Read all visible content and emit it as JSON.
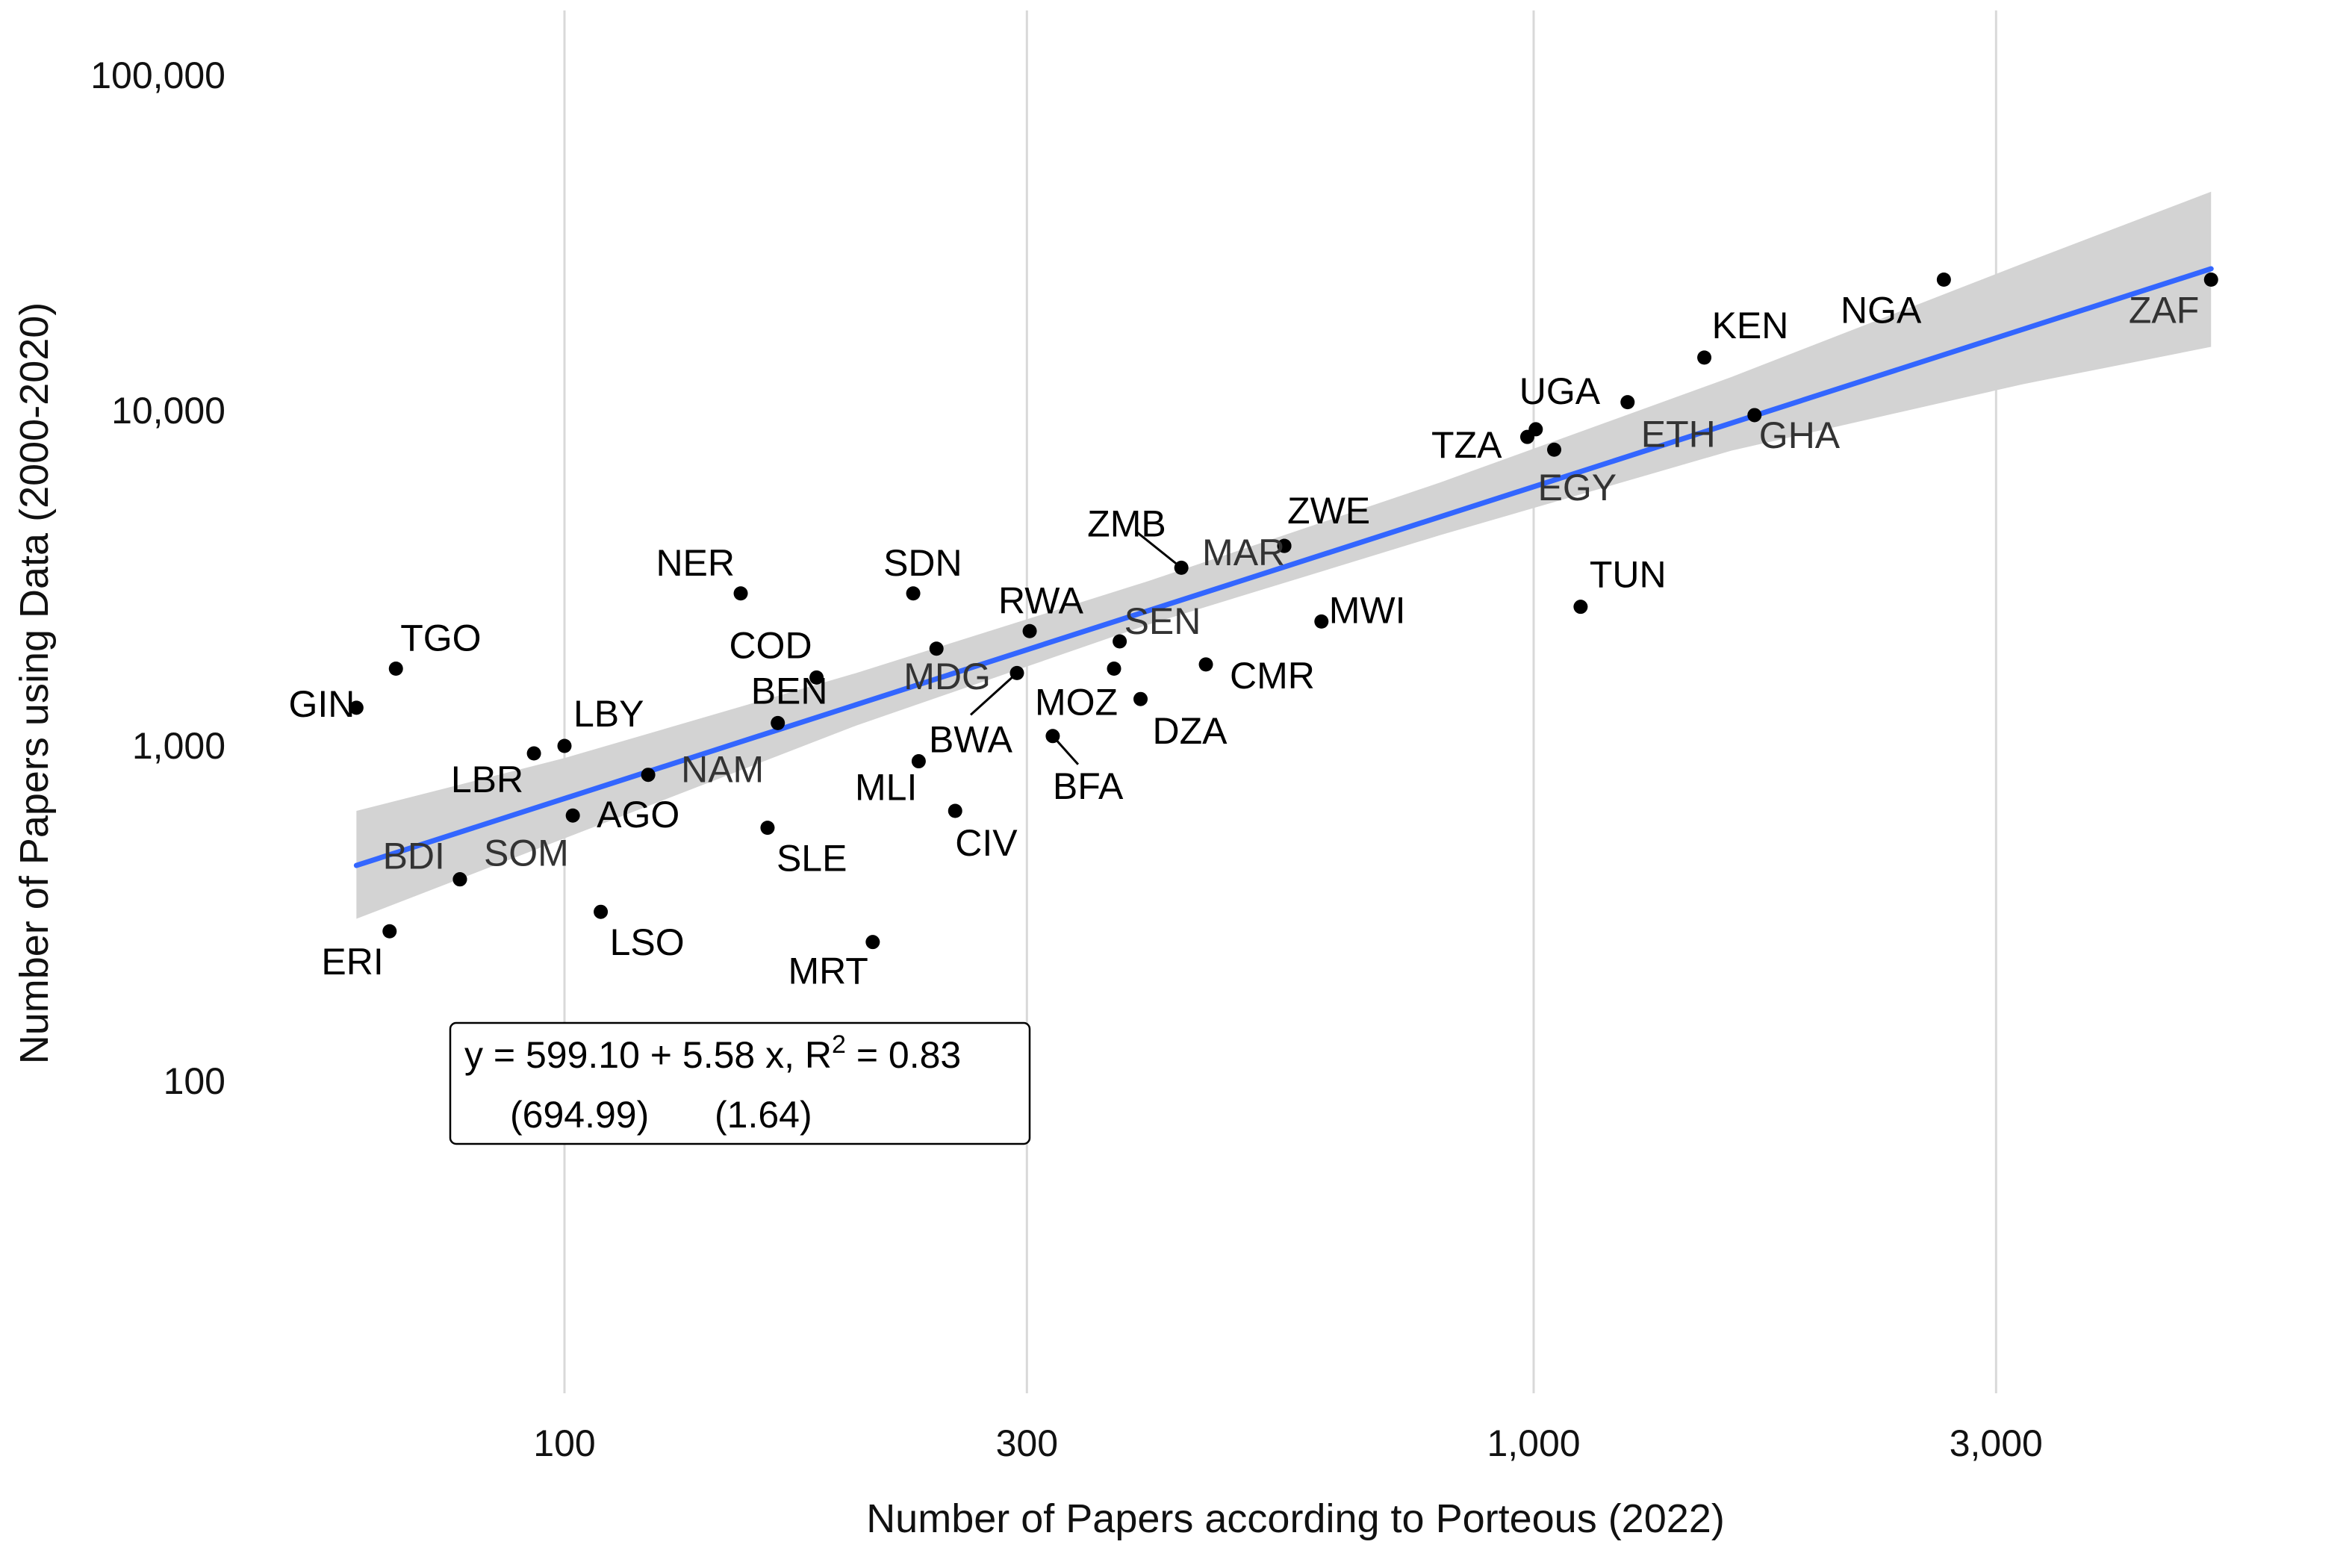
{
  "chart_data": {
    "type": "scatter",
    "title": "",
    "xlabel": "Number of Papers according to Porteous (2022)",
    "ylabel": "Number of Papers using Data (2000-2020)",
    "x_scale": "log10",
    "y_scale": "log10",
    "xlim": [
      62,
      5200
    ],
    "ylim": [
      20,
      140000
    ],
    "x_ticks": [
      100,
      300,
      1000,
      3000
    ],
    "x_tick_labels": [
      "100",
      "300",
      "1,000",
      "3,000"
    ],
    "y_ticks": [
      100,
      1000,
      10000,
      100000
    ],
    "y_tick_labels": [
      "100",
      "1,000",
      "10,000",
      "100,000"
    ],
    "grid": "vertical major lines only",
    "colors": {
      "points": "#000000",
      "fit_line": "#3366ff",
      "confidence_band": "#d3d3d3",
      "grid": "#d9d9d9"
    },
    "points": [
      {
        "label": "GIN",
        "x": 61,
        "y": 1300
      },
      {
        "label": "TGO",
        "x": 67,
        "y": 1700
      },
      {
        "label": "ERI",
        "x": 66,
        "y": 280
      },
      {
        "label": "BDI",
        "x": 78,
        "y": 400
      },
      {
        "label": "LBR",
        "x": 93,
        "y": 950
      },
      {
        "label": "LBY",
        "x": 100,
        "y": 1000
      },
      {
        "label": "AGO",
        "x": 102,
        "y": 620
      },
      {
        "label": "SOM",
        "x": 78,
        "y": 400
      },
      {
        "label": "LSO",
        "x": 109,
        "y": 320
      },
      {
        "label": "NAM",
        "x": 122,
        "y": 820
      },
      {
        "label": "NER",
        "x": 152,
        "y": 2850
      },
      {
        "label": "BEN",
        "x": 166,
        "y": 1170
      },
      {
        "label": "SLE",
        "x": 162,
        "y": 570
      },
      {
        "label": "COD",
        "x": 182,
        "y": 1600
      },
      {
        "label": "MRT",
        "x": 208,
        "y": 260
      },
      {
        "label": "SDN",
        "x": 229,
        "y": 2850
      },
      {
        "label": "MLI",
        "x": 232,
        "y": 900
      },
      {
        "label": "MDG",
        "x": 242,
        "y": 1950
      },
      {
        "label": "CIV",
        "x": 253,
        "y": 640
      },
      {
        "label": "BWA",
        "x": 293,
        "y": 1650
      },
      {
        "label": "RWA",
        "x": 302,
        "y": 2200
      },
      {
        "label": "BFA",
        "x": 319,
        "y": 1070
      },
      {
        "label": "MOZ",
        "x": 369,
        "y": 1700
      },
      {
        "label": "SEN",
        "x": 374,
        "y": 2050
      },
      {
        "label": "DZA",
        "x": 393,
        "y": 1380
      },
      {
        "label": "CMR",
        "x": 459,
        "y": 1750
      },
      {
        "label": "ZMB",
        "x": 433,
        "y": 3400
      },
      {
        "label": "MAR",
        "x": 553,
        "y": 3950
      },
      {
        "label": "ZWE",
        "x": 553,
        "y": 3950
      },
      {
        "label": "MWI",
        "x": 604,
        "y": 2350
      },
      {
        "label": "TZA",
        "x": 985,
        "y": 8350
      },
      {
        "label": "UGA",
        "x": 1005,
        "y": 8800
      },
      {
        "label": "EGY",
        "x": 1050,
        "y": 7650
      },
      {
        "label": "TUN",
        "x": 1118,
        "y": 2600
      },
      {
        "label": "ETH",
        "x": 1250,
        "y": 10600
      },
      {
        "label": "KEN",
        "x": 1500,
        "y": 14400
      },
      {
        "label": "GHA",
        "x": 1690,
        "y": 9700
      },
      {
        "label": "NGA",
        "x": 2650,
        "y": 24600
      },
      {
        "label": "ZAF",
        "x": 5000,
        "y": 24600
      }
    ],
    "fit_line": {
      "x_start": 61,
      "y_start": 440,
      "x_end": 5000,
      "y_end": 26500
    },
    "confidence_band": [
      {
        "x": 61,
        "lower": 305,
        "upper": 640
      },
      {
        "x": 100,
        "lower": 530,
        "upper": 920
      },
      {
        "x": 200,
        "lower": 1150,
        "upper": 1650
      },
      {
        "x": 400,
        "lower": 2300,
        "upper": 3100
      },
      {
        "x": 800,
        "lower": 4250,
        "upper": 6100
      },
      {
        "x": 1600,
        "lower": 7600,
        "upper": 12600
      },
      {
        "x": 3200,
        "lower": 12000,
        "upper": 27500
      },
      {
        "x": 5000,
        "lower": 15500,
        "upper": 45000
      }
    ],
    "equation": {
      "line1_prefix": "y = 599.10 + 5.58 x, R",
      "line1_sup": "2",
      "line1_suffix": " = 0.83",
      "se_intercept": "(694.99)",
      "se_slope": "(1.64)"
    }
  }
}
